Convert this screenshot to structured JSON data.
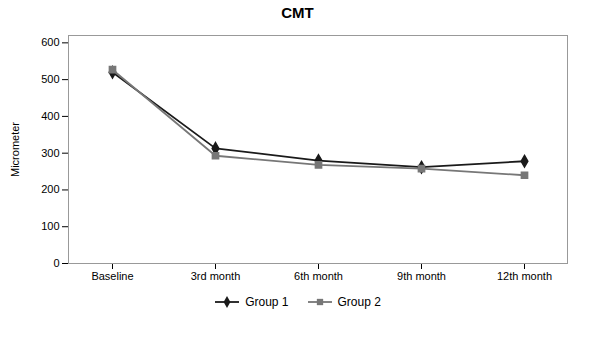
{
  "chart_data": {
    "type": "line",
    "title": "CMT",
    "ylabel": "Micrometer",
    "categories": [
      "Baseline",
      "3rd month",
      "6th month",
      "9th month",
      "12th month"
    ],
    "series": [
      {
        "name": "Group 1",
        "color": "#1a1a1a",
        "marker": "diamond",
        "values": [
          520,
          313,
          280,
          262,
          278
        ]
      },
      {
        "name": "Group 2",
        "color": "#777777",
        "marker": "square",
        "values": [
          527,
          293,
          268,
          258,
          240
        ]
      }
    ],
    "ylim": [
      0,
      620
    ],
    "yticks": [
      0,
      100,
      200,
      300,
      400,
      500,
      600
    ],
    "grid": false,
    "legend": "bottom"
  }
}
